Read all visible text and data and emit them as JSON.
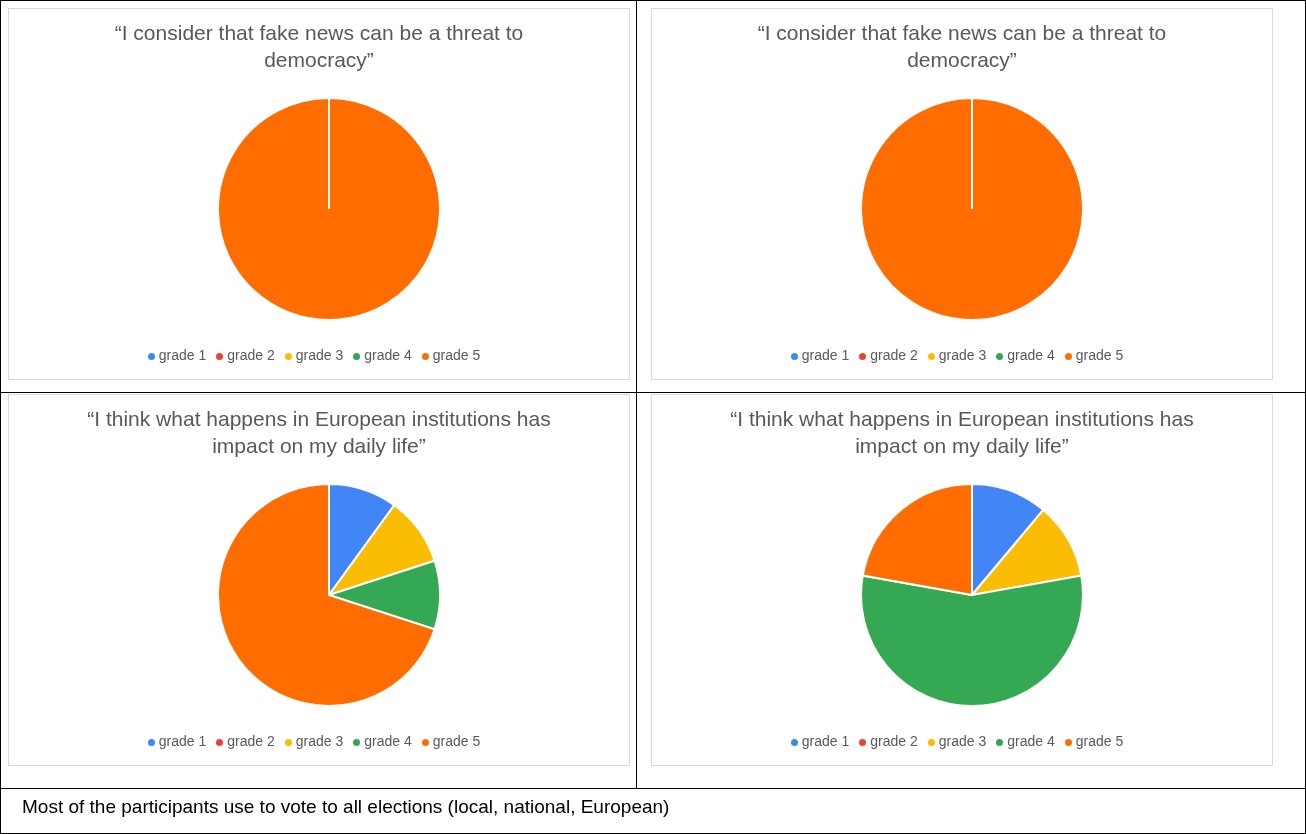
{
  "chart_data": [
    {
      "type": "pie",
      "title": "“I consider that fake news can be a threat to democracy”",
      "categories": [
        "grade 1",
        "grade 2",
        "grade 3",
        "grade 4",
        "grade 5"
      ],
      "values": [
        0,
        0,
        0,
        0,
        100
      ],
      "colors": [
        "#4285f4",
        "#ea4335",
        "#fbbc04",
        "#34a853",
        "#ff6d01"
      ],
      "legend": "bottom"
    },
    {
      "type": "pie",
      "title": "“I consider that fake news can be a threat to democracy”",
      "categories": [
        "grade 1",
        "grade 2",
        "grade 3",
        "grade 4",
        "grade 5"
      ],
      "values": [
        0,
        0,
        0,
        0,
        100
      ],
      "colors": [
        "#4285f4",
        "#ea4335",
        "#fbbc04",
        "#34a853",
        "#ff6d01"
      ],
      "legend": "bottom"
    },
    {
      "type": "pie",
      "title": "“I think what happens in European institutions has impact on my daily life”",
      "categories": [
        "grade 1",
        "grade 2",
        "grade 3",
        "grade 4",
        "grade 5"
      ],
      "values": [
        10,
        0,
        10,
        10,
        70
      ],
      "colors": [
        "#4285f4",
        "#ea4335",
        "#fbbc04",
        "#34a853",
        "#ff6d01"
      ],
      "legend": "bottom"
    },
    {
      "type": "pie",
      "title": "“I think what happens in European institutions has impact on my daily life”",
      "categories": [
        "grade 1",
        "grade 2",
        "grade 3",
        "grade 4",
        "grade 5"
      ],
      "values": [
        11.1,
        0,
        11.1,
        55.6,
        22.2
      ],
      "colors": [
        "#4285f4",
        "#ea4335",
        "#fbbc04",
        "#34a853",
        "#ff6d01"
      ],
      "legend": "bottom",
      "annotations": [
        "Most of the participants use to vote to all elections (local, national, European)"
      ]
    }
  ]
}
